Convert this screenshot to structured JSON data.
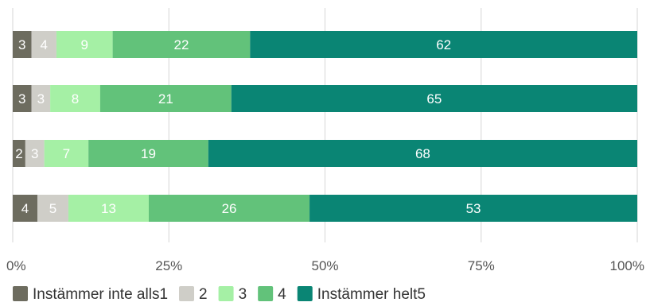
{
  "chart_data": {
    "type": "bar",
    "orientation": "horizontal",
    "stacked": true,
    "percent_stacked": true,
    "categories": [
      "",
      "",
      "",
      ""
    ],
    "series": [
      {
        "name": "Instämmer inte alls1",
        "color": "#6d6c5f",
        "values": [
          3,
          3,
          2,
          4
        ]
      },
      {
        "name": "2",
        "color": "#cfcec8",
        "values": [
          4,
          3,
          3,
          5
        ]
      },
      {
        "name": "3",
        "color": "#a5f0a5",
        "values": [
          9,
          8,
          7,
          13
        ]
      },
      {
        "name": "4",
        "color": "#62c27a",
        "values": [
          22,
          21,
          19,
          26
        ]
      },
      {
        "name": "Instämmer helt5",
        "color": "#0a8574",
        "values": [
          62,
          65,
          68,
          53
        ]
      }
    ],
    "xlim": [
      0,
      100
    ],
    "x_ticks": [
      "0%",
      "25%",
      "50%",
      "75%",
      "100%"
    ],
    "grid": "vertical",
    "legend": "bottom",
    "data_labels": true
  }
}
